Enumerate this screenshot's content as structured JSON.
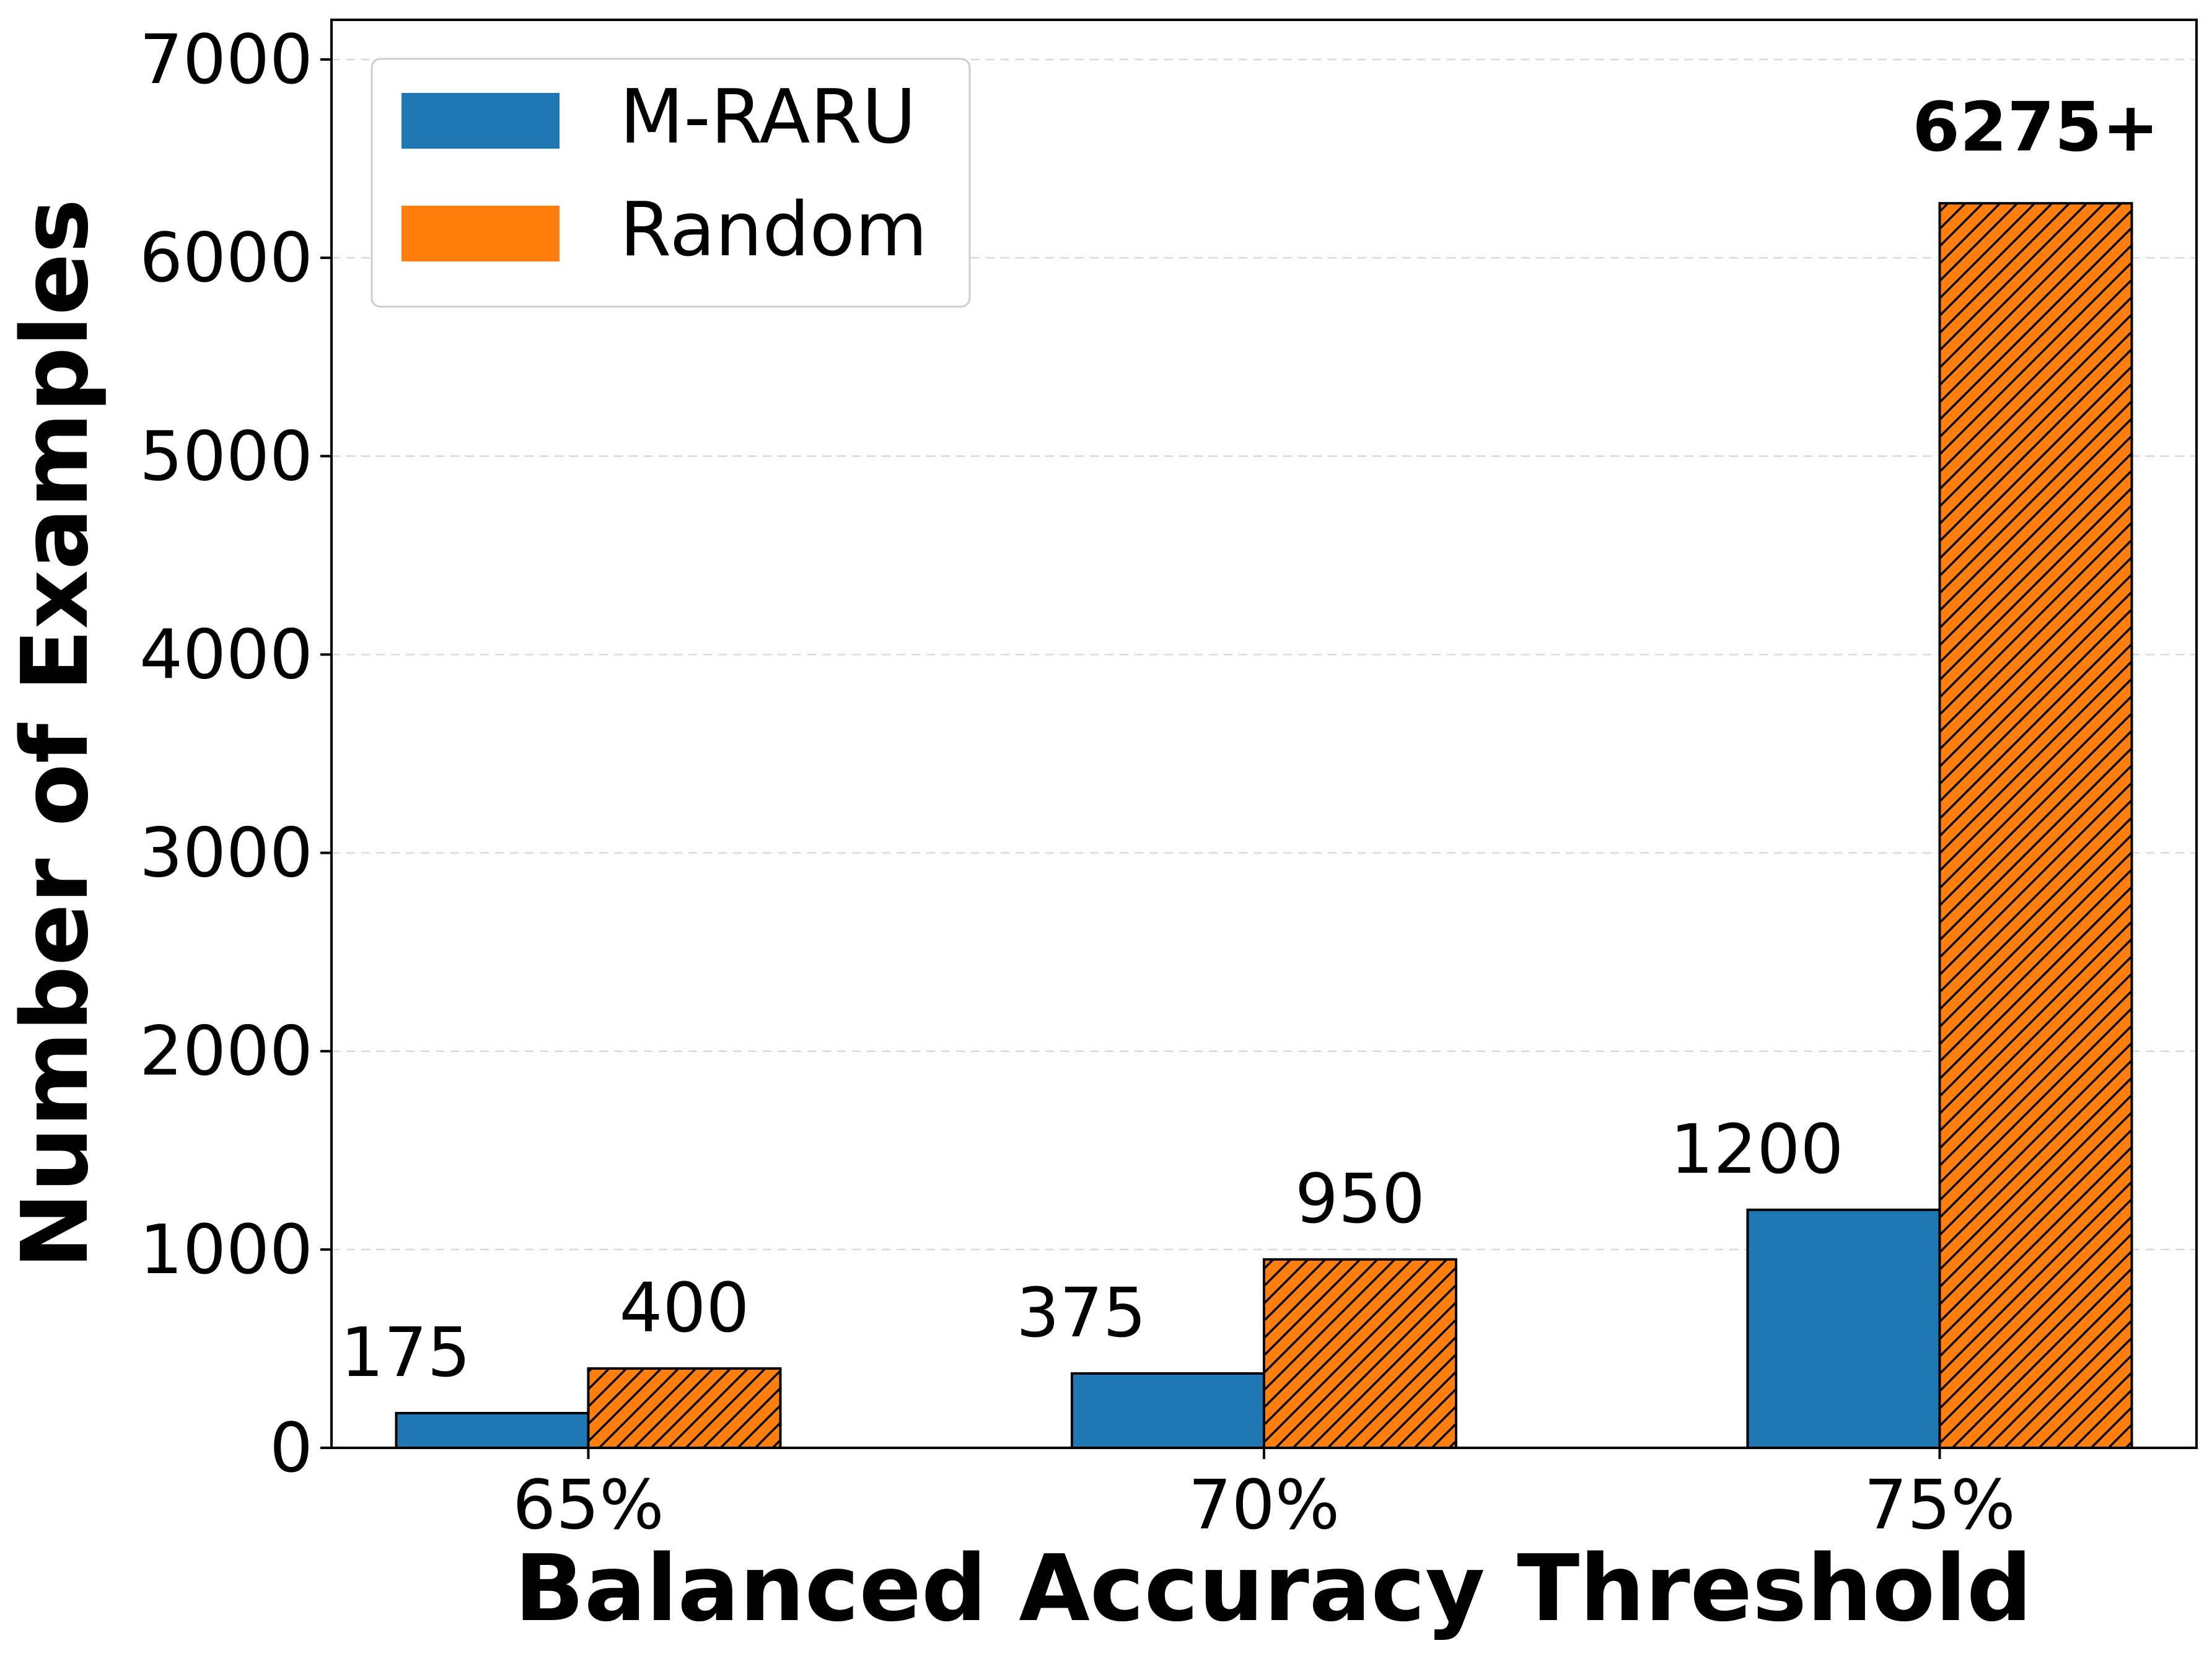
{
  "chart_data": {
    "type": "bar",
    "xlabel": "Balanced Accuracy Threshold",
    "ylabel": "Number of Examples",
    "categories": [
      "65%",
      "70%",
      "75%"
    ],
    "ylim": [
      0,
      7200
    ],
    "yticks": [
      0,
      1000,
      2000,
      3000,
      4000,
      5000,
      6000,
      7000
    ],
    "grid": "y-dashed",
    "legend_position": "top-left",
    "series": [
      {
        "name": "M-RARU",
        "color": "#1f77b4",
        "hatch": "none",
        "values": [
          175,
          375,
          1200
        ],
        "labels": [
          "175",
          "375",
          "1200"
        ],
        "label_bold": [
          false,
          false,
          false
        ]
      },
      {
        "name": "Random",
        "color": "#ff7f0e",
        "hatch": "diagonal",
        "values": [
          400,
          950,
          6275
        ],
        "labels": [
          "400",
          "950",
          "6275+"
        ],
        "label_bold": [
          false,
          false,
          true
        ]
      }
    ]
  }
}
